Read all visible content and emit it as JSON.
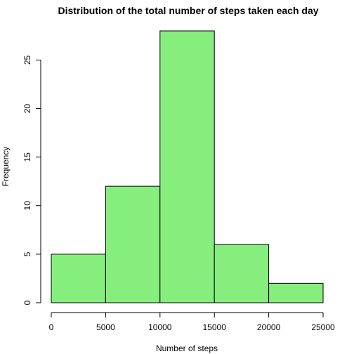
{
  "chart_data": {
    "type": "bar",
    "title": "Distribution of the total number of steps taken each day",
    "xlabel": "Number of steps",
    "ylabel": "Frequency",
    "bins": [
      {
        "from": 0,
        "to": 5000,
        "value": 5
      },
      {
        "from": 5000,
        "to": 10000,
        "value": 12
      },
      {
        "from": 10000,
        "to": 15000,
        "value": 28
      },
      {
        "from": 15000,
        "to": 20000,
        "value": 6
      },
      {
        "from": 20000,
        "to": 25000,
        "value": 2
      }
    ],
    "xlim": [
      0,
      25000
    ],
    "ylim": [
      0,
      28
    ],
    "xticks": [
      0,
      5000,
      10000,
      15000,
      20000,
      25000
    ],
    "yticks": [
      0,
      5,
      10,
      15,
      20,
      25
    ],
    "bar_color": "#86ee7d",
    "grid": false,
    "legend": "none"
  }
}
